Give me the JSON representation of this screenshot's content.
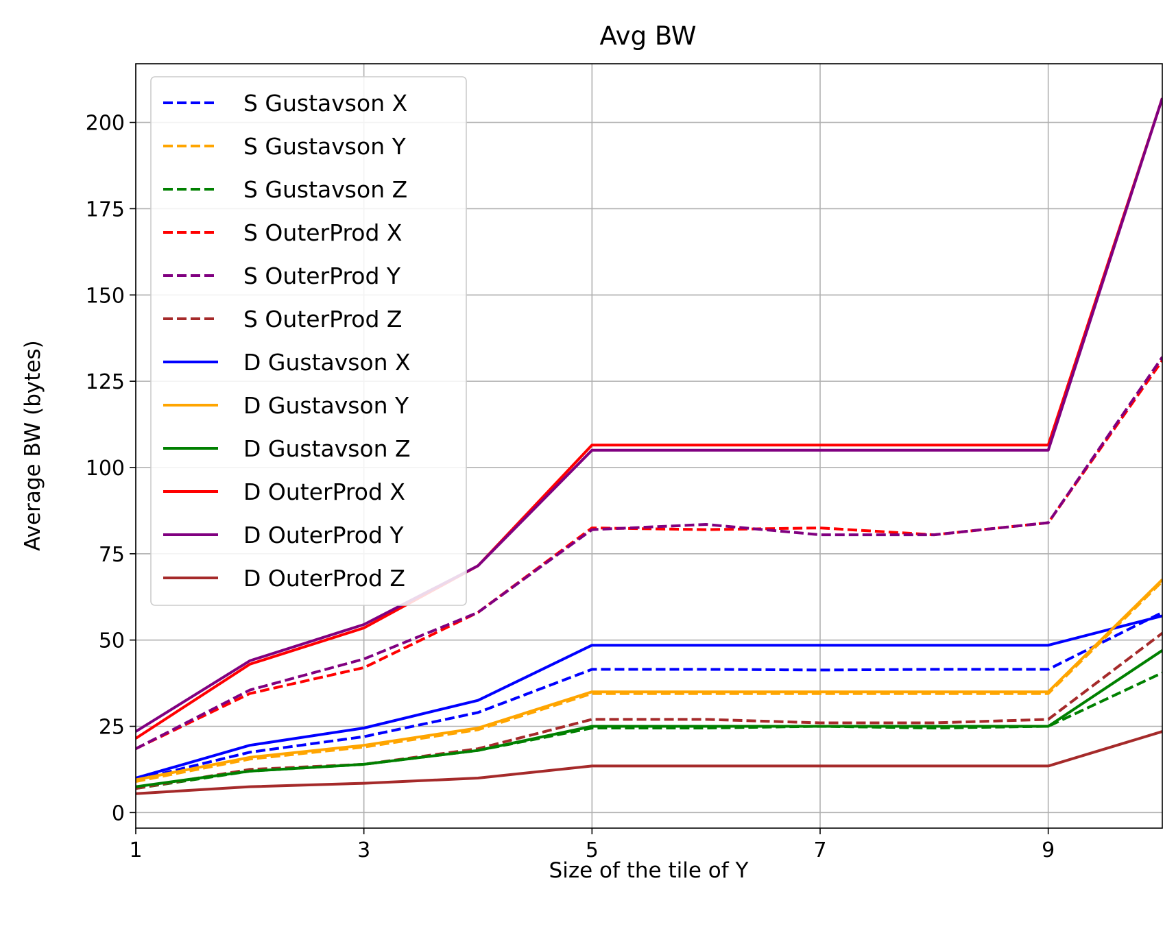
{
  "chart_data": {
    "type": "line",
    "title": "Avg BW",
    "xlabel": "Size of the tile of Y",
    "ylabel": "Average BW (bytes)",
    "xlim": [
      1,
      10
    ],
    "ylim": [
      -4.5,
      217
    ],
    "x_ticks": [
      1,
      3,
      5,
      7,
      9
    ],
    "y_ticks": [
      0,
      25,
      50,
      75,
      100,
      125,
      150,
      175,
      200
    ],
    "grid": true,
    "legend_position": "upper-left",
    "x": [
      1,
      2,
      3,
      4,
      5,
      6,
      7,
      8,
      9,
      10
    ],
    "series": [
      {
        "name": "S Gustavson X",
        "color": "#0000ff",
        "style": "dashed",
        "values": [
          9.5,
          17.5,
          22,
          29,
          41.5,
          41.5,
          41.3,
          41.5,
          41.5,
          58
        ]
      },
      {
        "name": "S Gustavson Y",
        "color": "#ffa500",
        "style": "dashed",
        "values": [
          9,
          15.5,
          19,
          24,
          34.5,
          34.5,
          34.5,
          34.5,
          34.5,
          67
        ]
      },
      {
        "name": "S Gustavson Z",
        "color": "#008000",
        "style": "dashed",
        "values": [
          7,
          12,
          14,
          18,
          24.5,
          24.5,
          25,
          24.5,
          25,
          40.5
        ]
      },
      {
        "name": "S OuterProd X",
        "color": "#ff0000",
        "style": "dashed",
        "values": [
          18.5,
          34.5,
          42,
          58,
          82.5,
          82,
          82.5,
          80.5,
          84,
          131
        ]
      },
      {
        "name": "S OuterProd Y",
        "color": "#800080",
        "style": "dashed",
        "values": [
          18.5,
          35.5,
          44.5,
          58,
          82,
          83.5,
          80.5,
          80.5,
          84,
          132
        ]
      },
      {
        "name": "S OuterProd Z",
        "color": "#a52a2a",
        "style": "dashed",
        "values": [
          7,
          12.5,
          14,
          18.5,
          27,
          27,
          26,
          26,
          27,
          52
        ]
      },
      {
        "name": "D Gustavson X",
        "color": "#0000ff",
        "style": "solid",
        "values": [
          10,
          19.5,
          24.5,
          32.5,
          48.5,
          48.5,
          48.5,
          48.5,
          48.5,
          57
        ]
      },
      {
        "name": "D Gustavson Y",
        "color": "#ffa500",
        "style": "solid",
        "values": [
          9.5,
          16,
          19.5,
          24.5,
          35,
          35,
          35,
          35,
          35,
          67.5
        ]
      },
      {
        "name": "D Gustavson Z",
        "color": "#008000",
        "style": "solid",
        "values": [
          7.5,
          12,
          14,
          18,
          25,
          25,
          25,
          25,
          25,
          47
        ]
      },
      {
        "name": "D OuterProd X",
        "color": "#ff0000",
        "style": "solid",
        "values": [
          21.5,
          43,
          53.5,
          71.5,
          106.5,
          106.5,
          106.5,
          106.5,
          106.5,
          207
        ]
      },
      {
        "name": "D OuterProd Y",
        "color": "#800080",
        "style": "solid",
        "values": [
          23.5,
          44,
          54.5,
          71.5,
          105,
          105,
          105,
          105,
          105,
          207
        ]
      },
      {
        "name": "D OuterProd Z",
        "color": "#a52a2a",
        "style": "solid",
        "values": [
          5.5,
          7.5,
          8.5,
          10,
          13.5,
          13.5,
          13.5,
          13.5,
          13.5,
          23.5
        ]
      }
    ]
  }
}
